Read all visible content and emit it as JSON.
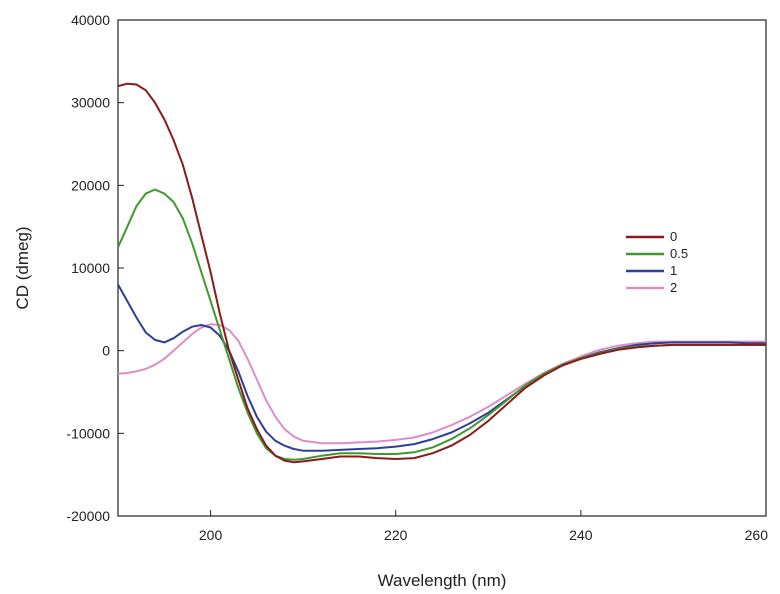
{
  "chart_data": {
    "type": "line",
    "title": "",
    "xlabel": "Wavelength (nm)",
    "ylabel": "CD (dmeg)",
    "xlim": [
      190,
      260
    ],
    "ylim": [
      -20000,
      40000
    ],
    "x_ticks": [
      200,
      220,
      240,
      260
    ],
    "y_ticks": [
      -20000,
      -10000,
      0,
      10000,
      20000,
      30000,
      40000
    ],
    "x_tick_labels": [
      "200",
      "220",
      "240",
      "260"
    ],
    "y_tick_labels": [
      "-20000",
      "-10000",
      "0",
      "10000",
      "20000",
      "30000",
      "40000"
    ],
    "grid": false,
    "legend_position": "right",
    "series": [
      {
        "name": "0",
        "color": "#8b1a1a",
        "points": [
          [
            190,
            32000
          ],
          [
            191,
            32300
          ],
          [
            192,
            32200
          ],
          [
            193,
            31500
          ],
          [
            194,
            30000
          ],
          [
            195,
            28000
          ],
          [
            196,
            25500
          ],
          [
            197,
            22500
          ],
          [
            198,
            18500
          ],
          [
            199,
            14000
          ],
          [
            200,
            9500
          ],
          [
            201,
            4500
          ],
          [
            202,
            0
          ],
          [
            203,
            -3500
          ],
          [
            204,
            -7000
          ],
          [
            205,
            -9500
          ],
          [
            206,
            -11500
          ],
          [
            207,
            -12700
          ],
          [
            208,
            -13300
          ],
          [
            209,
            -13500
          ],
          [
            210,
            -13400
          ],
          [
            212,
            -13100
          ],
          [
            214,
            -12800
          ],
          [
            216,
            -12800
          ],
          [
            218,
            -13000
          ],
          [
            220,
            -13100
          ],
          [
            222,
            -13000
          ],
          [
            224,
            -12400
          ],
          [
            226,
            -11500
          ],
          [
            228,
            -10200
          ],
          [
            230,
            -8500
          ],
          [
            232,
            -6500
          ],
          [
            234,
            -4500
          ],
          [
            236,
            -3000
          ],
          [
            238,
            -1800
          ],
          [
            240,
            -1000
          ],
          [
            242,
            -400
          ],
          [
            244,
            100
          ],
          [
            246,
            400
          ],
          [
            248,
            600
          ],
          [
            250,
            700
          ],
          [
            252,
            700
          ],
          [
            254,
            700
          ],
          [
            256,
            700
          ],
          [
            258,
            700
          ],
          [
            260,
            700
          ]
        ]
      },
      {
        "name": "0.5",
        "color": "#3e9a2e",
        "points": [
          [
            190,
            12500
          ],
          [
            191,
            15000
          ],
          [
            192,
            17500
          ],
          [
            193,
            19000
          ],
          [
            194,
            19500
          ],
          [
            195,
            19000
          ],
          [
            196,
            18000
          ],
          [
            197,
            16000
          ],
          [
            198,
            13000
          ],
          [
            199,
            9500
          ],
          [
            200,
            6000
          ],
          [
            201,
            2500
          ],
          [
            202,
            -1000
          ],
          [
            203,
            -4500
          ],
          [
            204,
            -7500
          ],
          [
            205,
            -10000
          ],
          [
            206,
            -11800
          ],
          [
            207,
            -12700
          ],
          [
            208,
            -13100
          ],
          [
            209,
            -13200
          ],
          [
            210,
            -13100
          ],
          [
            212,
            -12700
          ],
          [
            214,
            -12400
          ],
          [
            216,
            -12400
          ],
          [
            218,
            -12500
          ],
          [
            220,
            -12500
          ],
          [
            222,
            -12300
          ],
          [
            224,
            -11700
          ],
          [
            226,
            -10700
          ],
          [
            228,
            -9400
          ],
          [
            230,
            -7800
          ],
          [
            232,
            -6000
          ],
          [
            234,
            -4200
          ],
          [
            236,
            -2800
          ],
          [
            238,
            -1700
          ],
          [
            240,
            -900
          ],
          [
            242,
            -300
          ],
          [
            244,
            200
          ],
          [
            246,
            500
          ],
          [
            248,
            600
          ],
          [
            250,
            700
          ],
          [
            252,
            700
          ],
          [
            254,
            700
          ],
          [
            256,
            700
          ],
          [
            258,
            700
          ],
          [
            260,
            700
          ]
        ]
      },
      {
        "name": "1",
        "color": "#2d3f9b",
        "points": [
          [
            190,
            8000
          ],
          [
            191,
            6000
          ],
          [
            192,
            4000
          ],
          [
            193,
            2200
          ],
          [
            194,
            1300
          ],
          [
            195,
            1000
          ],
          [
            196,
            1500
          ],
          [
            197,
            2300
          ],
          [
            198,
            2900
          ],
          [
            199,
            3100
          ],
          [
            200,
            2800
          ],
          [
            201,
            1800
          ],
          [
            202,
            0
          ],
          [
            203,
            -2500
          ],
          [
            204,
            -5500
          ],
          [
            205,
            -8000
          ],
          [
            206,
            -9800
          ],
          [
            207,
            -10900
          ],
          [
            208,
            -11500
          ],
          [
            209,
            -11900
          ],
          [
            210,
            -12100
          ],
          [
            212,
            -12100
          ],
          [
            214,
            -12000
          ],
          [
            216,
            -11900
          ],
          [
            218,
            -11800
          ],
          [
            220,
            -11600
          ],
          [
            222,
            -11300
          ],
          [
            224,
            -10700
          ],
          [
            226,
            -9900
          ],
          [
            228,
            -8800
          ],
          [
            230,
            -7500
          ],
          [
            232,
            -5900
          ],
          [
            234,
            -4300
          ],
          [
            236,
            -2900
          ],
          [
            238,
            -1800
          ],
          [
            240,
            -900
          ],
          [
            242,
            -200
          ],
          [
            244,
            300
          ],
          [
            246,
            700
          ],
          [
            248,
            900
          ],
          [
            250,
            1000
          ],
          [
            252,
            1000
          ],
          [
            254,
            1000
          ],
          [
            256,
            1000
          ],
          [
            258,
            900
          ],
          [
            260,
            900
          ]
        ]
      },
      {
        "name": "2",
        "color": "#e08cc4",
        "points": [
          [
            190,
            -2800
          ],
          [
            191,
            -2700
          ],
          [
            192,
            -2500
          ],
          [
            193,
            -2200
          ],
          [
            194,
            -1700
          ],
          [
            195,
            -1000
          ],
          [
            196,
            0
          ],
          [
            197,
            1000
          ],
          [
            198,
            2000
          ],
          [
            199,
            2800
          ],
          [
            200,
            3200
          ],
          [
            201,
            3100
          ],
          [
            202,
            2500
          ],
          [
            203,
            1200
          ],
          [
            204,
            -1000
          ],
          [
            205,
            -3500
          ],
          [
            206,
            -6000
          ],
          [
            207,
            -8000
          ],
          [
            208,
            -9500
          ],
          [
            209,
            -10400
          ],
          [
            210,
            -10900
          ],
          [
            212,
            -11200
          ],
          [
            214,
            -11200
          ],
          [
            216,
            -11100
          ],
          [
            218,
            -11000
          ],
          [
            220,
            -10800
          ],
          [
            222,
            -10500
          ],
          [
            224,
            -9900
          ],
          [
            226,
            -9000
          ],
          [
            228,
            -8000
          ],
          [
            230,
            -6800
          ],
          [
            232,
            -5400
          ],
          [
            234,
            -4000
          ],
          [
            236,
            -2700
          ],
          [
            238,
            -1600
          ],
          [
            240,
            -700
          ],
          [
            242,
            100
          ],
          [
            244,
            600
          ],
          [
            246,
            900
          ],
          [
            248,
            1100
          ],
          [
            250,
            1100
          ],
          [
            252,
            1100
          ],
          [
            254,
            1100
          ],
          [
            256,
            1100
          ],
          [
            258,
            1100
          ],
          [
            260,
            1100
          ]
        ]
      }
    ]
  }
}
